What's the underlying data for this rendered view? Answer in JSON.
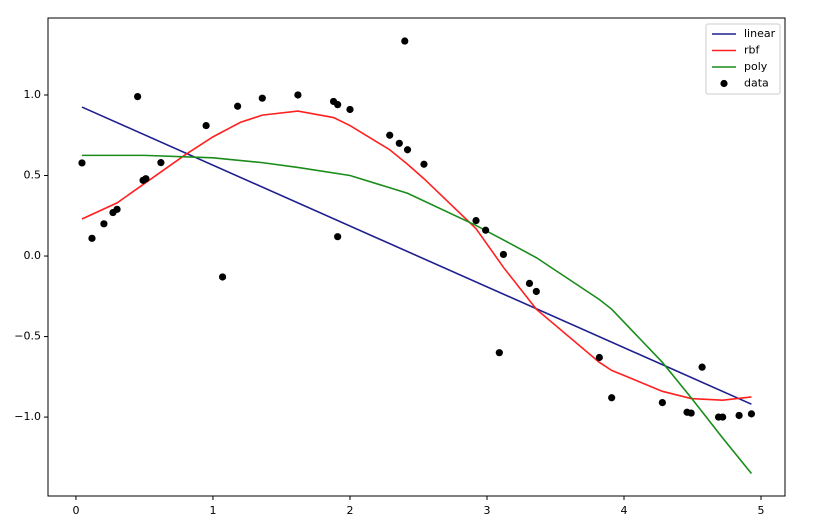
{
  "chart_data": {
    "type": "line",
    "xlim": [
      -0.204,
      5.175
    ],
    "ylim": [
      -1.49,
      1.478
    ],
    "xticks": [
      0,
      1,
      2,
      3,
      4,
      5
    ],
    "yticks": [
      {
        "value": -1.0,
        "label": "−1.0"
      },
      {
        "value": -0.5,
        "label": "−0.5"
      },
      {
        "value": 0.0,
        "label": "0.0"
      },
      {
        "value": 0.5,
        "label": "0.5"
      },
      {
        "value": 1.0,
        "label": "1.0"
      }
    ],
    "legend": "upper right",
    "series": [
      {
        "name": "linear",
        "color": "#1f1f8f",
        "mode": "line",
        "x": [
          0.044,
          4.93
        ],
        "values": [
          0.925,
          -0.92
        ]
      },
      {
        "name": "rbf",
        "color": "#ff2020",
        "mode": "line",
        "x": [
          0.044,
          0.3,
          0.5,
          0.8,
          1.0,
          1.2,
          1.36,
          1.62,
          1.88,
          2.0,
          2.29,
          2.42,
          2.54,
          2.92,
          3.12,
          3.36,
          3.82,
          3.91,
          4.28,
          4.49,
          4.72,
          4.93
        ],
        "values": [
          0.23,
          0.33,
          0.45,
          0.63,
          0.74,
          0.83,
          0.875,
          0.9,
          0.86,
          0.81,
          0.66,
          0.57,
          0.48,
          0.17,
          -0.07,
          -0.33,
          -0.66,
          -0.71,
          -0.84,
          -0.885,
          -0.895,
          -0.875
        ]
      },
      {
        "name": "poly",
        "color": "#1a8c1a",
        "mode": "line",
        "x": [
          0.044,
          0.5,
          1.0,
          1.36,
          1.62,
          2.0,
          2.42,
          2.92,
          3.12,
          3.36,
          3.82,
          3.91,
          4.28,
          4.49,
          4.72,
          4.93
        ],
        "values": [
          0.625,
          0.625,
          0.61,
          0.58,
          0.55,
          0.5,
          0.39,
          0.19,
          0.1,
          -0.01,
          -0.27,
          -0.33,
          -0.66,
          -0.88,
          -1.13,
          -1.35
        ]
      },
      {
        "name": "data",
        "color": "#000000",
        "mode": "markers",
        "x": [
          0.044,
          0.117,
          0.204,
          0.27,
          0.3,
          0.45,
          0.49,
          0.51,
          0.62,
          0.95,
          1.07,
          1.18,
          1.36,
          1.62,
          1.88,
          1.91,
          1.91,
          2.0,
          2.29,
          2.36,
          2.4,
          2.42,
          2.54,
          2.92,
          2.99,
          3.12,
          3.09,
          3.31,
          3.36,
          3.82,
          3.91,
          4.28,
          4.46,
          4.49,
          4.57,
          4.69,
          4.72,
          4.84,
          4.93
        ],
        "values": [
          0.578,
          0.11,
          0.2,
          0.27,
          0.29,
          0.99,
          0.47,
          0.48,
          0.58,
          0.81,
          -0.13,
          0.93,
          0.98,
          1.0,
          0.96,
          0.94,
          0.12,
          0.91,
          0.75,
          0.7,
          1.335,
          0.66,
          0.57,
          0.22,
          0.16,
          0.01,
          -0.6,
          -0.17,
          -0.22,
          -0.63,
          -0.88,
          -0.91,
          -0.97,
          -0.975,
          -0.69,
          -1.0,
          -1.0,
          -0.99,
          -0.98
        ]
      }
    ]
  }
}
